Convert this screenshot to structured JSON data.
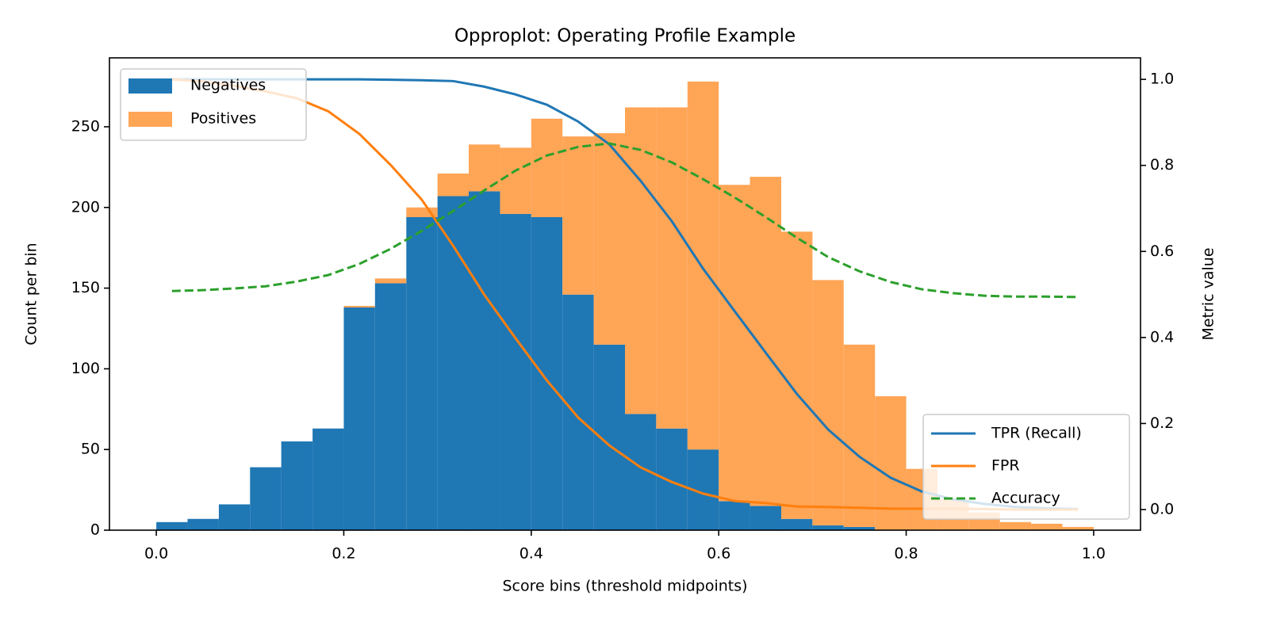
{
  "chart_data": {
    "type": "histogram",
    "title": "Opproplot: Operating Profile Example",
    "xlabel": "Score bins (threshold midpoints)",
    "ylabel": "Count per bin",
    "y2label": "Metric value",
    "bins": [
      0,
      0.0333,
      0.0667,
      0.1,
      0.1333,
      0.1667,
      0.2,
      0.2333,
      0.2667,
      0.3,
      0.3333,
      0.3667,
      0.4,
      0.4333,
      0.4667,
      0.5,
      0.5333,
      0.5667,
      0.6,
      0.6333,
      0.6667,
      0.7,
      0.7333,
      0.7667,
      0.8,
      0.8333,
      0.8667,
      0.9,
      0.9333,
      0.9667,
      1
    ],
    "stacked": true,
    "series": [
      {
        "name": "Negatives",
        "color": "#1f77b4",
        "values": [
          5,
          7,
          16,
          39,
          55,
          63,
          138,
          153,
          194,
          207,
          210,
          196,
          194,
          146,
          115,
          72,
          63,
          50,
          18,
          15,
          7,
          3,
          2,
          0,
          0,
          0,
          0,
          0,
          0,
          0
        ]
      },
      {
        "name": "Positives",
        "color": "#ffa556",
        "values": [
          0,
          0,
          0,
          0,
          0,
          0,
          1,
          3,
          6,
          14,
          29,
          41,
          61,
          98,
          131,
          190,
          199,
          228,
          196,
          204,
          178,
          152,
          113,
          83,
          38,
          19,
          11,
          5,
          4,
          2
        ]
      }
    ],
    "bar_legend_loc": "upper left",
    "lines": {
      "x": [
        0.0167,
        0.05,
        0.0833,
        0.1167,
        0.15,
        0.1833,
        0.2167,
        0.25,
        0.2833,
        0.3167,
        0.35,
        0.3833,
        0.4167,
        0.45,
        0.4833,
        0.5167,
        0.55,
        0.5833,
        0.6167,
        0.65,
        0.6833,
        0.7167,
        0.75,
        0.7833,
        0.8167,
        0.85,
        0.8833,
        0.9167,
        0.95,
        0.9833
      ],
      "series": [
        {
          "name": "TPR (Recall)",
          "color": "#1f77b4",
          "linestyle": "solid",
          "axis": "y2",
          "values": [
            1.0,
            1.0,
            1.0,
            1.0,
            1.0,
            1.0,
            1.0,
            0.999,
            0.998,
            0.996,
            0.983,
            0.965,
            0.941,
            0.902,
            0.849,
            0.764,
            0.67,
            0.56,
            0.462,
            0.365,
            0.269,
            0.186,
            0.123,
            0.074,
            0.042,
            0.024,
            0.013,
            0.006,
            0.003,
            0.001
          ]
        },
        {
          "name": "FPR",
          "color": "#ff7f0e",
          "linestyle": "solid",
          "axis": "y2",
          "values": [
            1.0,
            0.995,
            0.985,
            0.972,
            0.956,
            0.926,
            0.873,
            0.801,
            0.72,
            0.613,
            0.499,
            0.398,
            0.3,
            0.214,
            0.149,
            0.098,
            0.064,
            0.037,
            0.02,
            0.015,
            0.007,
            0.006,
            0.004,
            0.002,
            0.002,
            0.002,
            0.001,
            0,
            0,
            0
          ]
        },
        {
          "name": "Accuracy",
          "color": "#2ca02c",
          "linestyle": "dashed",
          "axis": "y2",
          "values": [
            0.508,
            0.51,
            0.514,
            0.519,
            0.53,
            0.545,
            0.571,
            0.606,
            0.648,
            0.694,
            0.742,
            0.788,
            0.823,
            0.843,
            0.851,
            0.836,
            0.807,
            0.768,
            0.726,
            0.68,
            0.632,
            0.587,
            0.554,
            0.529,
            0.512,
            0.503,
            0.497,
            0.495,
            0.495,
            0.494
          ]
        }
      ],
      "legend_loc": "lower right"
    },
    "xlim": [
      -0.05,
      1.05
    ],
    "xticks": [
      {
        "value": 0,
        "label": "0.0"
      },
      0.2,
      0.4,
      0.6,
      0.8,
      {
        "value": 1,
        "label": "1.0"
      }
    ],
    "ylim": [
      0,
      292.7
    ],
    "yticks": [
      0,
      50,
      100,
      150,
      200,
      250
    ],
    "y2lim": [
      -0.048,
      1.05
    ],
    "y2ticks": [
      {
        "value": 0,
        "label": "0.0"
      },
      0.2,
      0.4,
      0.6,
      0.8,
      {
        "value": 1,
        "label": "1.0"
      }
    ]
  }
}
